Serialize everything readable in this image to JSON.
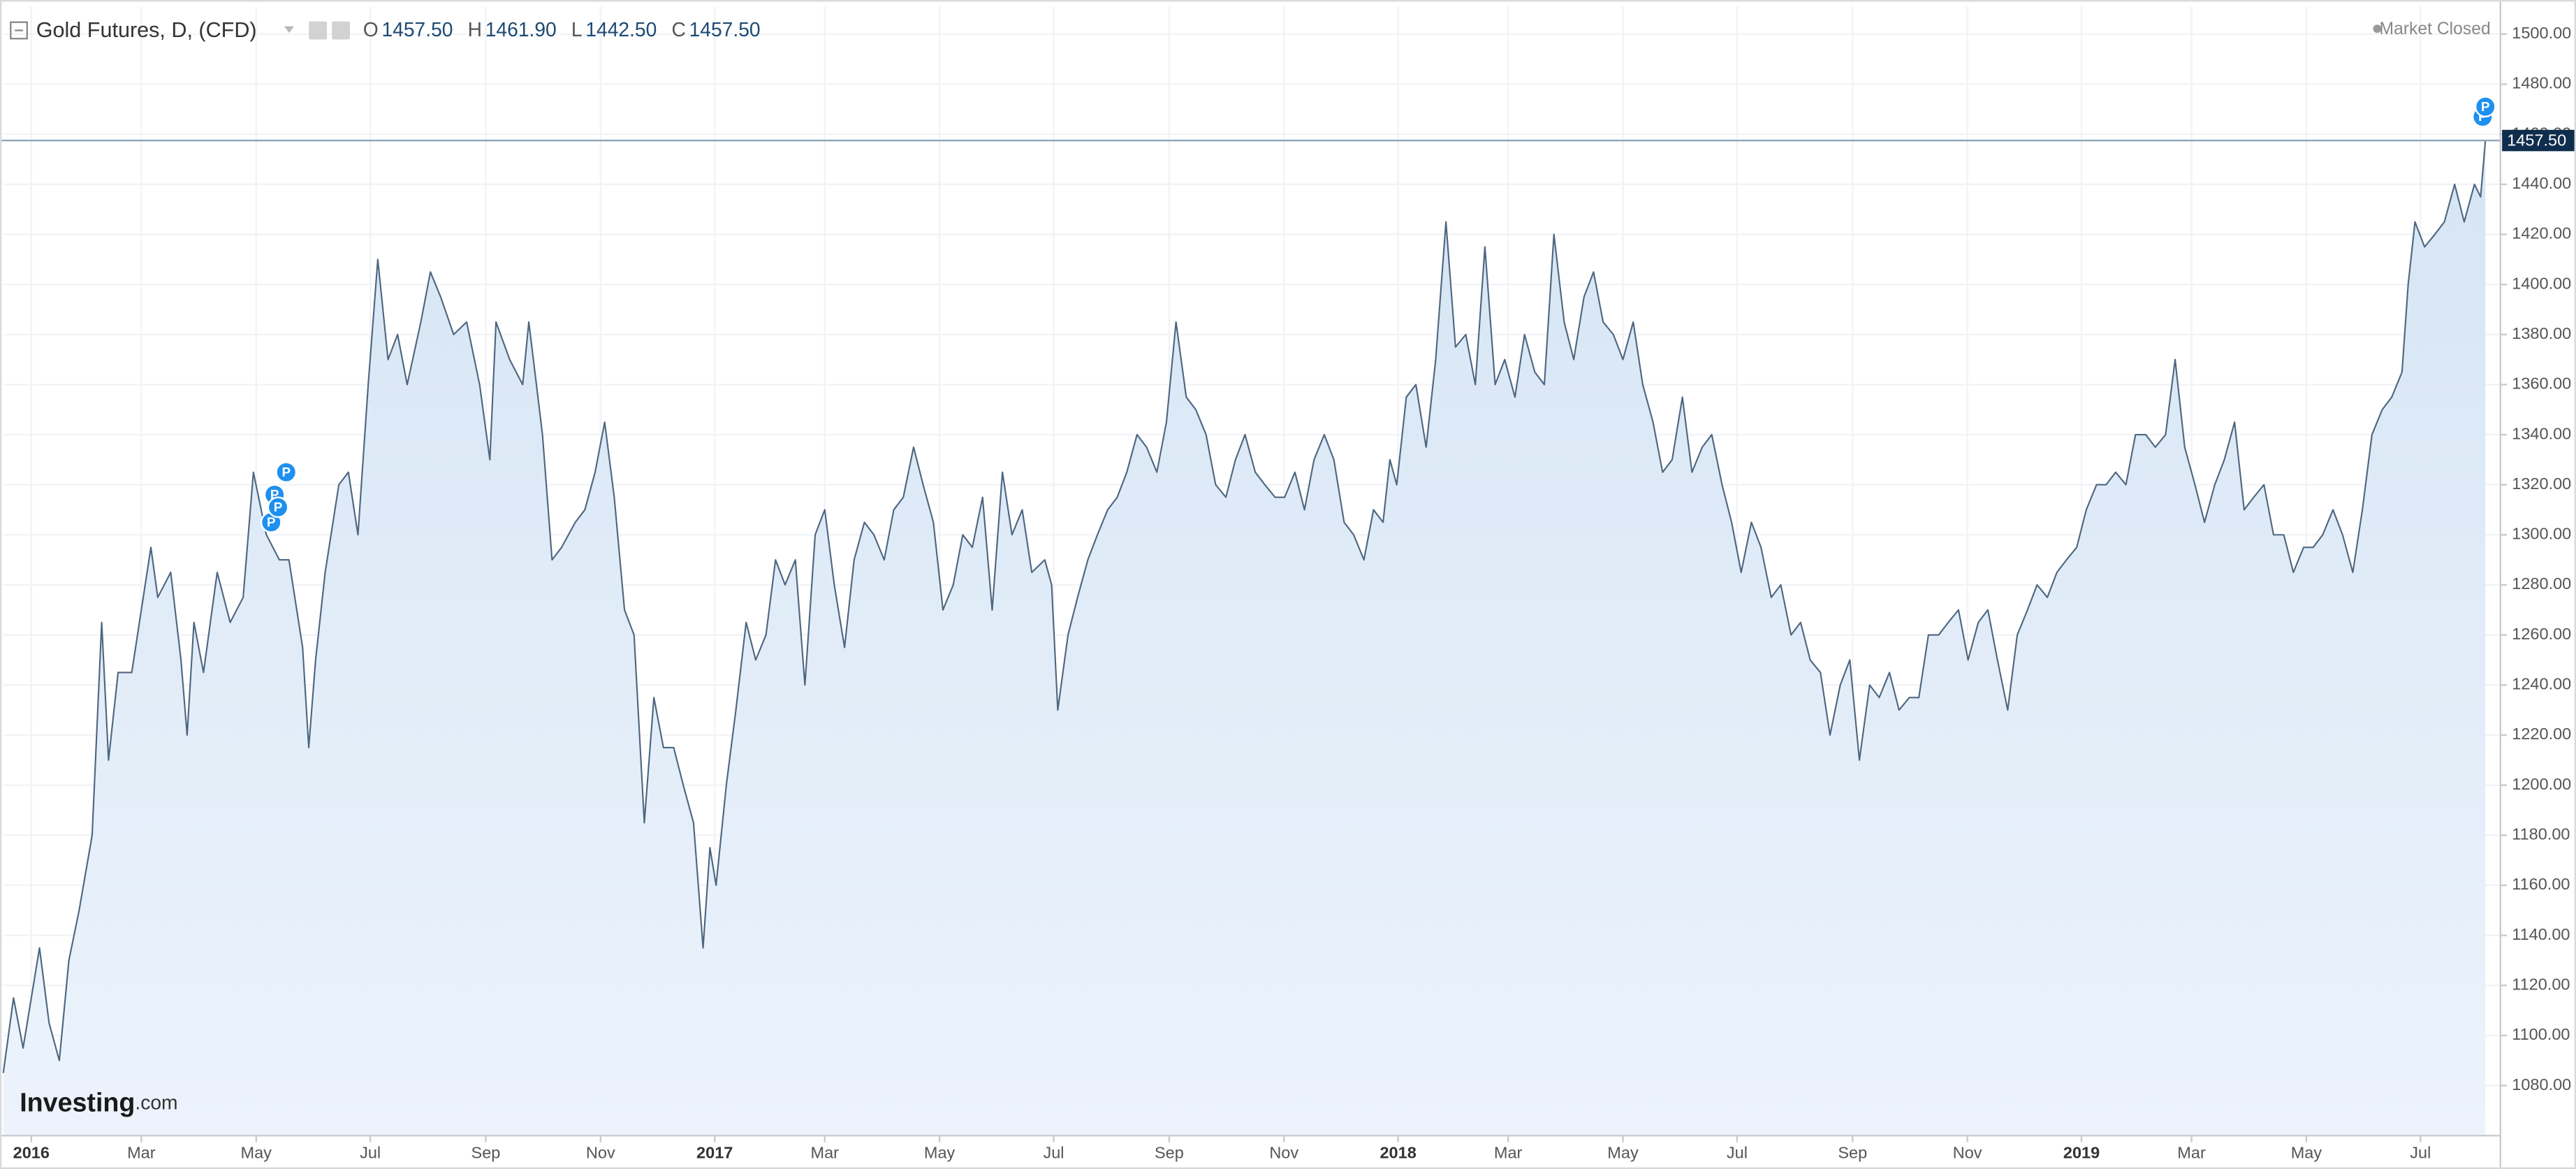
{
  "chart_data": {
    "type": "area",
    "title": "Gold Futures, D, (CFD)",
    "ohlc": [
      {
        "key": "O",
        "value": "1457.50"
      },
      {
        "key": "H",
        "value": "1461.90"
      },
      {
        "key": "L",
        "value": "1442.50"
      },
      {
        "key": "C",
        "value": "1457.50"
      }
    ],
    "status": "Market Closed",
    "logo": {
      "main": "Investing",
      "suffix": ".com"
    },
    "last_price": {
      "value": 1457.5,
      "label": "1457.50"
    },
    "color": "#4d6680",
    "fill": "#dde9f6",
    "grid": true,
    "xlim": [
      2015.959,
      2019.613
    ],
    "ylim": [
      1060,
      1511
    ],
    "xticks": [
      2016,
      {
        "value": 2016.161,
        "label": "Mar"
      },
      {
        "value": 2016.329,
        "label": "May"
      },
      {
        "value": 2016.496,
        "label": "Jul"
      },
      {
        "value": 2016.665,
        "label": "Sep"
      },
      {
        "value": 2016.833,
        "label": "Nov"
      },
      2017,
      {
        "value": 2017.161,
        "label": "Mar"
      },
      {
        "value": 2017.329,
        "label": "May"
      },
      {
        "value": 2017.496,
        "label": "Jul"
      },
      {
        "value": 2017.665,
        "label": "Sep"
      },
      {
        "value": 2017.833,
        "label": "Nov"
      },
      2018,
      {
        "value": 2018.161,
        "label": "Mar"
      },
      {
        "value": 2018.329,
        "label": "May"
      },
      {
        "value": 2018.496,
        "label": "Jul"
      },
      {
        "value": 2018.665,
        "label": "Sep"
      },
      {
        "value": 2018.833,
        "label": "Nov"
      },
      2019,
      {
        "value": 2019.161,
        "label": "Mar"
      },
      {
        "value": 2019.329,
        "label": "May"
      },
      {
        "value": 2019.496,
        "label": "Jul"
      }
    ],
    "yticks": [
      {
        "value": 1080,
        "label": "1080.00"
      },
      {
        "value": 1100,
        "label": "1100.00"
      },
      {
        "value": 1120,
        "label": "1120.00"
      },
      {
        "value": 1140,
        "label": "1140.00"
      },
      {
        "value": 1160,
        "label": "1160.00"
      },
      {
        "value": 1180,
        "label": "1180.00"
      },
      {
        "value": 1200,
        "label": "1200.00"
      },
      {
        "value": 1220,
        "label": "1220.00"
      },
      {
        "value": 1240,
        "label": "1240.00"
      },
      {
        "value": 1260,
        "label": "1260.00"
      },
      {
        "value": 1280,
        "label": "1280.00"
      },
      {
        "value": 1300,
        "label": "1300.00"
      },
      {
        "value": 1320,
        "label": "1320.00"
      },
      {
        "value": 1340,
        "label": "1340.00"
      },
      {
        "value": 1360,
        "label": "1360.00"
      },
      {
        "value": 1380,
        "label": "1380.00"
      },
      {
        "value": 1400,
        "label": "1400.00"
      },
      {
        "value": 1420,
        "label": "1420.00"
      },
      {
        "value": 1440,
        "label": "1440.00"
      },
      {
        "value": 1460,
        "label": "1460.00"
      },
      {
        "value": 1480,
        "label": "1480.00"
      },
      {
        "value": 1500,
        "label": "1500.00"
      }
    ],
    "x": [
      2015.959,
      2015.974,
      2015.988,
      2016.012,
      2016.026,
      2016.041,
      2016.055,
      2016.07,
      2016.089,
      2016.103,
      2016.113,
      2016.127,
      2016.147,
      2016.161,
      2016.175,
      2016.185,
      2016.204,
      2016.219,
      2016.228,
      2016.238,
      2016.252,
      2016.272,
      2016.291,
      2016.31,
      2016.325,
      2016.344,
      2016.363,
      2016.377,
      2016.397,
      2016.406,
      2016.416,
      2016.43,
      2016.45,
      2016.464,
      2016.478,
      2016.493,
      2016.507,
      2016.522,
      2016.536,
      2016.55,
      2016.57,
      2016.584,
      2016.599,
      2016.618,
      2016.637,
      2016.656,
      2016.671,
      2016.68,
      2016.7,
      2016.719,
      2016.728,
      2016.748,
      2016.762,
      2016.776,
      2016.796,
      2016.81,
      2016.825,
      2016.839,
      2016.853,
      2016.868,
      2016.882,
      2016.897,
      2016.911,
      2016.925,
      2016.94,
      2016.954,
      2016.969,
      2016.983,
      2016.993,
      2017.002,
      2017.017,
      2017.031,
      2017.046,
      2017.06,
      2017.075,
      2017.089,
      2017.103,
      2017.118,
      2017.132,
      2017.147,
      2017.161,
      2017.175,
      2017.19,
      2017.204,
      2017.219,
      2017.233,
      2017.248,
      2017.262,
      2017.276,
      2017.291,
      2017.305,
      2017.32,
      2017.334,
      2017.349,
      2017.363,
      2017.377,
      2017.392,
      2017.406,
      2017.421,
      2017.435,
      2017.45,
      2017.464,
      2017.483,
      2017.493,
      2017.502,
      2017.517,
      2017.531,
      2017.546,
      2017.56,
      2017.575,
      2017.589,
      2017.603,
      2017.618,
      2017.632,
      2017.647,
      2017.661,
      2017.675,
      2017.69,
      2017.704,
      2017.719,
      2017.733,
      2017.748,
      2017.762,
      2017.776,
      2017.791,
      2017.805,
      2017.82,
      2017.834,
      2017.849,
      2017.863,
      2017.877,
      2017.892,
      2017.906,
      2017.921,
      2017.935,
      2017.95,
      2017.964,
      2017.978,
      2017.988,
      2017.998,
      2018.012,
      2018.026,
      2018.041,
      2018.055,
      2018.07,
      2018.084,
      2018.099,
      2018.113,
      2018.127,
      2018.142,
      2018.156,
      2018.171,
      2018.185,
      2018.2,
      2018.214,
      2018.228,
      2018.243,
      2018.257,
      2018.272,
      2018.286,
      2018.3,
      2018.315,
      2018.329,
      2018.344,
      2018.358,
      2018.373,
      2018.387,
      2018.401,
      2018.416,
      2018.43,
      2018.445,
      2018.459,
      2018.474,
      2018.488,
      2018.502,
      2018.517,
      2018.531,
      2018.546,
      2018.56,
      2018.575,
      2018.589,
      2018.603,
      2018.618,
      2018.632,
      2018.647,
      2018.661,
      2018.675,
      2018.69,
      2018.704,
      2018.719,
      2018.733,
      2018.748,
      2018.762,
      2018.776,
      2018.791,
      2018.805,
      2018.82,
      2018.834,
      2018.849,
      2018.863,
      2018.877,
      2018.892,
      2018.906,
      2018.921,
      2018.935,
      2018.95,
      2018.964,
      2018.978,
      2018.993,
      2019.007,
      2019.022,
      2019.036,
      2019.05,
      2019.065,
      2019.079,
      2019.094,
      2019.108,
      2019.123,
      2019.137,
      2019.151,
      2019.166,
      2019.18,
      2019.195,
      2019.209,
      2019.224,
      2019.238,
      2019.252,
      2019.267,
      2019.281,
      2019.296,
      2019.31,
      2019.325,
      2019.339,
      2019.353,
      2019.368,
      2019.382,
      2019.397,
      2019.411,
      2019.425,
      2019.44,
      2019.454,
      2019.469,
      2019.478,
      2019.488,
      2019.502,
      2019.517,
      2019.531,
      2019.546,
      2019.56,
      2019.575,
      2019.584,
      2019.591
    ],
    "values": [
      1085,
      1115,
      1095,
      1135,
      1105,
      1090,
      1130,
      1150,
      1180,
      1265,
      1210,
      1245,
      1245,
      1270,
      1295,
      1275,
      1285,
      1250,
      1220,
      1265,
      1245,
      1285,
      1265,
      1275,
      1325,
      1300,
      1290,
      1290,
      1255,
      1215,
      1250,
      1285,
      1320,
      1325,
      1300,
      1360,
      1410,
      1370,
      1380,
      1360,
      1385,
      1405,
      1395,
      1380,
      1385,
      1360,
      1330,
      1385,
      1370,
      1360,
      1385,
      1340,
      1290,
      1295,
      1305,
      1310,
      1325,
      1345,
      1315,
      1270,
      1260,
      1185,
      1235,
      1215,
      1215,
      1200,
      1185,
      1135,
      1175,
      1160,
      1200,
      1230,
      1265,
      1250,
      1260,
      1290,
      1280,
      1290,
      1240,
      1300,
      1310,
      1280,
      1255,
      1290,
      1305,
      1300,
      1290,
      1310,
      1315,
      1335,
      1320,
      1305,
      1270,
      1280,
      1300,
      1295,
      1315,
      1270,
      1325,
      1300,
      1310,
      1285,
      1290,
      1280,
      1230,
      1260,
      1275,
      1290,
      1300,
      1310,
      1315,
      1325,
      1340,
      1335,
      1325,
      1345,
      1385,
      1355,
      1350,
      1340,
      1320,
      1315,
      1330,
      1340,
      1325,
      1320,
      1315,
      1315,
      1325,
      1310,
      1330,
      1340,
      1330,
      1305,
      1300,
      1290,
      1310,
      1305,
      1330,
      1320,
      1355,
      1360,
      1335,
      1370,
      1425,
      1375,
      1380,
      1360,
      1415,
      1360,
      1370,
      1355,
      1380,
      1365,
      1360,
      1420,
      1385,
      1370,
      1395,
      1405,
      1385,
      1380,
      1370,
      1385,
      1360,
      1345,
      1325,
      1330,
      1355,
      1325,
      1335,
      1340,
      1320,
      1305,
      1285,
      1305,
      1295,
      1275,
      1280,
      1260,
      1265,
      1250,
      1245,
      1220,
      1240,
      1250,
      1210,
      1240,
      1235,
      1245,
      1230,
      1235,
      1235,
      1260,
      1260,
      1265,
      1270,
      1250,
      1265,
      1270,
      1250,
      1230,
      1260,
      1270,
      1280,
      1275,
      1285,
      1290,
      1295,
      1310,
      1320,
      1320,
      1325,
      1320,
      1340,
      1340,
      1335,
      1340,
      1370,
      1335,
      1320,
      1305,
      1320,
      1330,
      1345,
      1310,
      1315,
      1320,
      1300,
      1300,
      1285,
      1295,
      1295,
      1300,
      1310,
      1300,
      1285,
      1310,
      1340,
      1350,
      1355,
      1365,
      1400,
      1425,
      1415,
      1420,
      1425,
      1440,
      1425,
      1440,
      1435,
      1457.5
    ],
    "events": [
      {
        "label": "P",
        "x": 2016.351,
        "y": 1305
      },
      {
        "label": "P",
        "x": 2016.356,
        "y": 1316
      },
      {
        "label": "P",
        "x": 2016.361,
        "y": 1311
      },
      {
        "label": "P",
        "x": 2016.373,
        "y": 1325
      },
      {
        "label": "P",
        "x": 2019.587,
        "y": 1467
      },
      {
        "label": "P",
        "x": 2019.591,
        "y": 1471
      }
    ],
    "event_color": "#1e90f0"
  }
}
